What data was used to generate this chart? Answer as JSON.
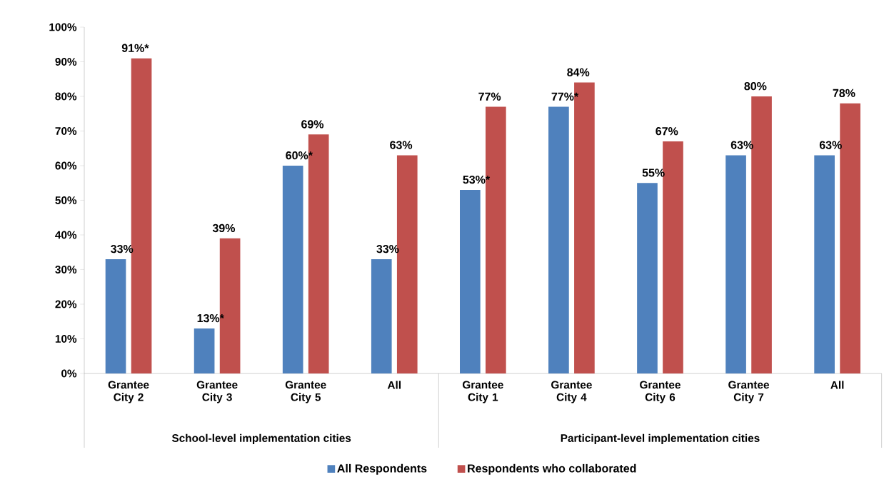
{
  "chart_data": {
    "type": "bar",
    "categories": [
      "Grantee City 2",
      "Grantee City 3",
      "Grantee City 5",
      "All",
      "Grantee City 1",
      "Grantee City 4",
      "Grantee City 6",
      "Grantee City 7",
      "All"
    ],
    "series": [
      {
        "name": "All Respondents",
        "color": "#4f81bd",
        "values": [
          33,
          13,
          60,
          33,
          53,
          77,
          55,
          63,
          63
        ],
        "value_labels": [
          "33%",
          "13%*",
          "60%*",
          "33%",
          "53%*",
          "77%*",
          "55%",
          "63%",
          "63%"
        ]
      },
      {
        "name": "Respondents who collaborated",
        "color": "#c0504d",
        "values": [
          91,
          39,
          69,
          63,
          77,
          84,
          67,
          80,
          78
        ],
        "value_labels": [
          "91%*",
          "39%",
          "69%",
          "63%",
          "77%",
          "84%",
          "67%",
          "80%",
          "78%"
        ]
      }
    ],
    "ylim": [
      0,
      100
    ],
    "yticks": [
      {
        "value": 0,
        "label": "0%"
      },
      {
        "value": 10,
        "label": "10%"
      },
      {
        "value": 20,
        "label": "20%"
      },
      {
        "value": 30,
        "label": "30%"
      },
      {
        "value": 40,
        "label": "40%"
      },
      {
        "value": 50,
        "label": "50%"
      },
      {
        "value": 60,
        "label": "60%"
      },
      {
        "value": 70,
        "label": "70%"
      },
      {
        "value": 80,
        "label": "80%"
      },
      {
        "value": 90,
        "label": "90%"
      },
      {
        "value": 100,
        "label": "100%"
      }
    ],
    "annotations": [
      "School-level implementation cities",
      "Participant-level implementation cities"
    ],
    "grid": false,
    "legend": "bottom"
  }
}
